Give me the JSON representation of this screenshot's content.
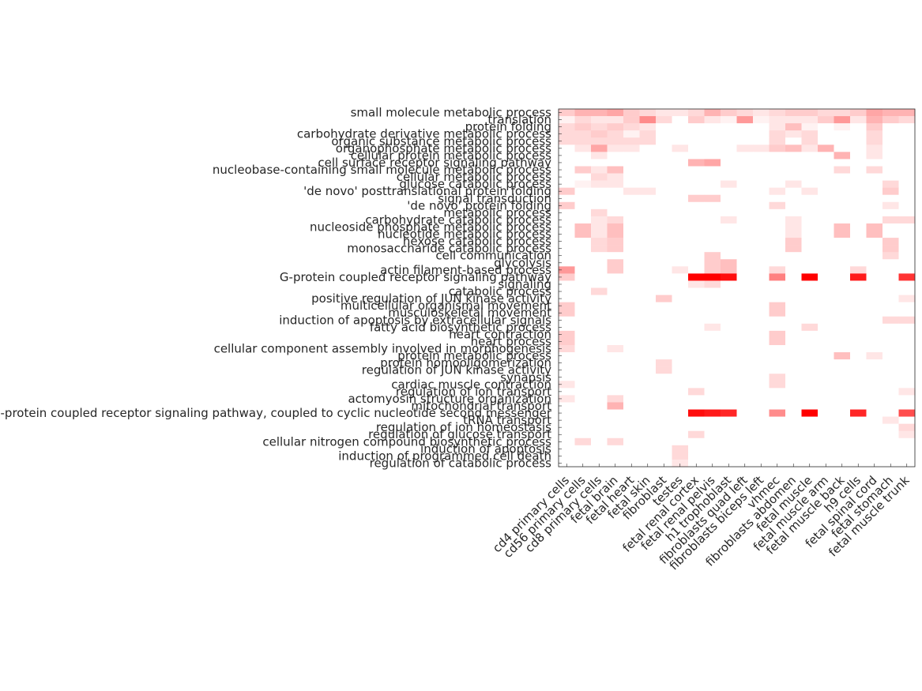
{
  "chart_data": {
    "type": "heatmap",
    "colormap": [
      "#ffffff",
      "#ff0000"
    ],
    "rows": [
      "small molecule metabolic process",
      "translation",
      "protein folding",
      "carbohydrate derivative metabolic process",
      "organic substance metabolic process",
      "organophosphate metabolic process",
      "cellular protein metabolic process",
      "cell surface receptor signaling pathway",
      "nucleobase-containing small molecule metabolic process",
      "cellular metabolic process",
      "glucose catabolic process",
      "'de novo' posttranslational protein folding",
      "signal transduction",
      "'de novo' protein folding",
      "metabolic process",
      "carbohydrate catabolic process",
      "nucleoside phosphate metabolic process",
      "nucleotide metabolic process",
      "hexose catabolic process",
      "monosaccharide catabolic process",
      "cell communication",
      "glycolysis",
      "actin filament-based process",
      "G-protein coupled receptor signaling pathway",
      "signaling",
      "catabolic process",
      "positive regulation of JUN kinase activity",
      "multicellular organismal movement",
      "musculoskeletal movement",
      "induction of apoptosis by extracellular signals",
      "fatty acid biosynthetic process",
      "heart contraction",
      "heart process",
      "cellular component assembly involved in morphogenesis",
      "protein metabolic process",
      "protein homooligomerization",
      "regulation of JUN kinase activity",
      "synapsis",
      "cardiac muscle contraction",
      "regulation of ion transport",
      "actomyosin structure organization",
      "mitochondrial transport",
      "G-protein coupled receptor signaling pathway, coupled to cyclic nucleotide second messenger",
      "tRNA transport",
      "regulation of ion homeostasis",
      "regulation of glucose transport",
      "cellular nitrogen compound biosynthetic process",
      "induction of apoptosis",
      "induction of programmed cell death",
      "regulation of catabolic process"
    ],
    "columns": [
      "cd4 primary cells",
      "cd56 primary cells",
      "cd8 primary cells",
      "fetal brain",
      "fetal heart",
      "fetal skin",
      "fibroblast",
      "testes",
      "fetal renal cortex",
      "fetal renal pelvis",
      "h1 trophoblast",
      "fibroblasts quad left",
      "fibroblasts biceps left",
      "vhmec",
      "fibroblasts abdomen",
      "fetal muscle",
      "fetal muscle arm",
      "fetal muscle back",
      "h9 cells",
      "fetal spinal cord",
      "fetal stomach",
      "fetal muscle trunk"
    ],
    "values": [
      [
        0.2,
        0.3,
        0.3,
        0.35,
        0.2,
        0.15,
        0.1,
        0.1,
        0.15,
        0.3,
        0.2,
        0.15,
        0.1,
        0.15,
        0.2,
        0.2,
        0.15,
        0.15,
        0.2,
        0.35,
        0.3,
        0.3
      ],
      [
        0.05,
        0.15,
        0.1,
        0.1,
        0.2,
        0.45,
        0.15,
        0,
        0.2,
        0.1,
        0.05,
        0.4,
        0.05,
        0.1,
        0.1,
        0.1,
        0.2,
        0.4,
        0.1,
        0.3,
        0.2,
        0.15
      ],
      [
        0.15,
        0.2,
        0.15,
        0.2,
        0.15,
        0.1,
        0,
        0,
        0,
        0,
        0,
        0,
        0,
        0.1,
        0.25,
        0.05,
        0,
        0.05,
        0,
        0.2,
        0,
        0
      ],
      [
        0.15,
        0.15,
        0.2,
        0.15,
        0.05,
        0.15,
        0,
        0,
        0,
        0,
        0,
        0,
        0,
        0.15,
        0.1,
        0.15,
        0,
        0,
        0,
        0.15,
        0,
        0
      ],
      [
        0.15,
        0.15,
        0.15,
        0.15,
        0.15,
        0.15,
        0,
        0,
        0,
        0,
        0,
        0,
        0,
        0.15,
        0,
        0.15,
        0,
        0,
        0,
        0.15,
        0,
        0
      ],
      [
        0,
        0.1,
        0.35,
        0.1,
        0.1,
        0,
        0,
        0.1,
        0,
        0,
        0,
        0.1,
        0.1,
        0.2,
        0.25,
        0.1,
        0.3,
        0,
        0,
        0.1,
        0,
        0
      ],
      [
        0,
        0,
        0.1,
        0,
        0,
        0,
        0,
        0,
        0,
        0,
        0,
        0,
        0,
        0,
        0,
        0,
        0,
        0.3,
        0,
        0.1,
        0,
        0
      ],
      [
        0,
        0,
        0,
        0,
        0,
        0,
        0,
        0,
        0.3,
        0.35,
        0,
        0,
        0,
        0,
        0,
        0,
        0,
        0,
        0,
        0,
        0,
        0
      ],
      [
        0,
        0.2,
        0.1,
        0.25,
        0,
        0,
        0,
        0,
        0,
        0,
        0,
        0,
        0,
        0,
        0,
        0,
        0,
        0.15,
        0,
        0.15,
        0,
        0
      ],
      [
        0,
        0,
        0.15,
        0.1,
        0,
        0,
        0,
        0,
        0,
        0,
        0,
        0,
        0,
        0,
        0,
        0,
        0,
        0,
        0,
        0,
        0,
        0
      ],
      [
        0,
        0.05,
        0.1,
        0.1,
        0,
        0,
        0,
        0,
        0,
        0,
        0.1,
        0,
        0,
        0,
        0.1,
        0,
        0,
        0,
        0,
        0,
        0.15,
        0
      ],
      [
        0.2,
        0,
        0,
        0,
        0.1,
        0.1,
        0,
        0,
        0,
        0,
        0,
        0,
        0,
        0.1,
        0,
        0.1,
        0,
        0,
        0,
        0,
        0.2,
        0
      ],
      [
        0,
        0,
        0,
        0,
        0,
        0,
        0,
        0,
        0.2,
        0.2,
        0,
        0,
        0,
        0,
        0,
        0,
        0,
        0,
        0,
        0,
        0,
        0
      ],
      [
        0.2,
        0,
        0,
        0,
        0,
        0,
        0,
        0,
        0,
        0,
        0,
        0,
        0,
        0.15,
        0,
        0,
        0,
        0,
        0,
        0,
        0.1,
        0
      ],
      [
        0,
        0,
        0.15,
        0,
        0,
        0,
        0,
        0,
        0,
        0,
        0,
        0,
        0,
        0,
        0,
        0,
        0,
        0,
        0,
        0,
        0,
        0
      ],
      [
        0,
        0,
        0.1,
        0.15,
        0,
        0,
        0,
        0,
        0,
        0,
        0.1,
        0,
        0,
        0,
        0.1,
        0,
        0,
        0,
        0,
        0,
        0.15,
        0.15
      ],
      [
        0,
        0.25,
        0.1,
        0.25,
        0,
        0,
        0,
        0,
        0,
        0,
        0,
        0,
        0,
        0,
        0.1,
        0,
        0,
        0.25,
        0,
        0.25,
        0,
        0
      ],
      [
        0,
        0.25,
        0.1,
        0.25,
        0,
        0,
        0,
        0,
        0,
        0,
        0,
        0,
        0,
        0,
        0.1,
        0,
        0,
        0.25,
        0,
        0.25,
        0,
        0
      ],
      [
        0,
        0,
        0.15,
        0.2,
        0,
        0,
        0,
        0,
        0,
        0,
        0,
        0,
        0,
        0,
        0.2,
        0,
        0,
        0,
        0,
        0,
        0.2,
        0
      ],
      [
        0,
        0,
        0.15,
        0.2,
        0,
        0,
        0,
        0,
        0,
        0,
        0,
        0,
        0,
        0,
        0.2,
        0,
        0,
        0,
        0,
        0,
        0.2,
        0
      ],
      [
        0,
        0,
        0,
        0,
        0,
        0,
        0,
        0,
        0,
        0.2,
        0,
        0,
        0,
        0,
        0,
        0,
        0,
        0,
        0,
        0,
        0.15,
        0
      ],
      [
        0,
        0,
        0,
        0.2,
        0,
        0,
        0,
        0,
        0,
        0.2,
        0.25,
        0,
        0,
        0,
        0,
        0,
        0,
        0,
        0,
        0,
        0,
        0
      ],
      [
        0.4,
        0,
        0,
        0.2,
        0,
        0,
        0,
        0.1,
        0,
        0.2,
        0.25,
        0,
        0,
        0.15,
        0,
        0,
        0,
        0,
        0.15,
        0,
        0,
        0
      ],
      [
        0.2,
        0,
        0,
        0,
        0,
        0,
        0,
        0,
        1,
        1,
        0.95,
        0,
        0,
        0.5,
        0,
        1,
        0,
        0,
        0.9,
        0,
        0,
        0.8
      ],
      [
        0,
        0,
        0,
        0,
        0,
        0,
        0,
        0,
        0.1,
        0.15,
        0,
        0,
        0,
        0,
        0,
        0,
        0,
        0,
        0,
        0,
        0,
        0
      ],
      [
        0,
        0,
        0.15,
        0,
        0,
        0,
        0,
        0,
        0,
        0,
        0,
        0,
        0,
        0,
        0,
        0,
        0,
        0,
        0,
        0,
        0,
        0
      ],
      [
        0,
        0,
        0,
        0,
        0,
        0,
        0.2,
        0,
        0,
        0,
        0,
        0,
        0,
        0,
        0,
        0,
        0,
        0,
        0,
        0,
        0,
        0.1
      ],
      [
        0.2,
        0,
        0,
        0,
        0,
        0,
        0,
        0,
        0,
        0,
        0,
        0,
        0,
        0.2,
        0,
        0,
        0,
        0,
        0,
        0,
        0,
        0
      ],
      [
        0.2,
        0,
        0,
        0,
        0,
        0,
        0,
        0,
        0,
        0,
        0,
        0,
        0,
        0.2,
        0,
        0,
        0,
        0,
        0,
        0,
        0,
        0
      ],
      [
        0,
        0,
        0,
        0,
        0,
        0,
        0,
        0,
        0,
        0,
        0,
        0,
        0,
        0,
        0,
        0,
        0,
        0,
        0,
        0,
        0.15,
        0.15
      ],
      [
        0,
        0,
        0,
        0,
        0,
        0,
        0,
        0,
        0,
        0.1,
        0,
        0,
        0,
        0,
        0,
        0.15,
        0,
        0,
        0,
        0,
        0,
        0
      ],
      [
        0.2,
        0,
        0,
        0,
        0,
        0,
        0,
        0,
        0,
        0,
        0,
        0,
        0,
        0.2,
        0,
        0,
        0,
        0,
        0,
        0,
        0,
        0
      ],
      [
        0.2,
        0,
        0,
        0,
        0,
        0,
        0,
        0,
        0,
        0,
        0,
        0,
        0,
        0.2,
        0,
        0,
        0,
        0,
        0,
        0,
        0,
        0
      ],
      [
        0.15,
        0,
        0,
        0.1,
        0,
        0,
        0,
        0,
        0,
        0,
        0,
        0,
        0,
        0,
        0,
        0,
        0,
        0,
        0,
        0,
        0,
        0
      ],
      [
        0,
        0,
        0,
        0,
        0,
        0,
        0,
        0,
        0,
        0,
        0,
        0,
        0,
        0,
        0,
        0,
        0,
        0.25,
        0,
        0.1,
        0,
        0
      ],
      [
        0,
        0,
        0,
        0,
        0,
        0,
        0.15,
        0,
        0,
        0,
        0,
        0,
        0,
        0,
        0,
        0,
        0,
        0,
        0,
        0,
        0,
        0
      ],
      [
        0,
        0,
        0,
        0,
        0,
        0,
        0.15,
        0,
        0,
        0,
        0,
        0,
        0,
        0,
        0,
        0,
        0,
        0,
        0,
        0,
        0,
        0
      ],
      [
        0,
        0,
        0,
        0,
        0,
        0,
        0,
        0,
        0,
        0,
        0,
        0,
        0,
        0.15,
        0,
        0,
        0,
        0,
        0,
        0,
        0,
        0
      ],
      [
        0.1,
        0,
        0,
        0,
        0,
        0,
        0,
        0,
        0,
        0,
        0,
        0,
        0,
        0.15,
        0,
        0,
        0,
        0,
        0,
        0,
        0,
        0
      ],
      [
        0,
        0,
        0,
        0,
        0,
        0,
        0,
        0,
        0.15,
        0,
        0,
        0,
        0,
        0,
        0,
        0,
        0,
        0,
        0,
        0,
        0,
        0.1
      ],
      [
        0.1,
        0,
        0,
        0.15,
        0,
        0,
        0,
        0,
        0,
        0,
        0,
        0,
        0,
        0,
        0,
        0,
        0,
        0,
        0,
        0,
        0,
        0
      ],
      [
        0,
        0,
        0,
        0.3,
        0,
        0,
        0,
        0,
        0,
        0,
        0,
        0,
        0,
        0,
        0,
        0,
        0,
        0,
        0,
        0,
        0,
        0
      ],
      [
        0,
        0,
        0,
        0,
        0,
        0,
        0,
        0,
        0.95,
        0.9,
        0.85,
        0,
        0,
        0.45,
        0,
        1,
        0,
        0,
        0.85,
        0,
        0,
        0.7
      ],
      [
        0,
        0,
        0,
        0,
        0,
        0,
        0,
        0,
        0,
        0,
        0,
        0,
        0,
        0,
        0,
        0,
        0,
        0,
        0,
        0,
        0.1,
        0
      ],
      [
        0,
        0,
        0,
        0,
        0,
        0,
        0,
        0,
        0,
        0,
        0,
        0,
        0,
        0,
        0,
        0,
        0,
        0,
        0,
        0,
        0,
        0.15
      ],
      [
        0,
        0,
        0,
        0,
        0,
        0,
        0,
        0,
        0.15,
        0,
        0,
        0,
        0,
        0,
        0,
        0,
        0,
        0,
        0,
        0,
        0,
        0.1
      ],
      [
        0,
        0.15,
        0,
        0.15,
        0,
        0,
        0,
        0,
        0,
        0,
        0,
        0,
        0,
        0,
        0,
        0,
        0,
        0,
        0,
        0,
        0,
        0
      ],
      [
        0,
        0,
        0,
        0,
        0,
        0,
        0,
        0.15,
        0,
        0,
        0,
        0,
        0,
        0,
        0,
        0,
        0,
        0,
        0,
        0,
        0,
        0
      ],
      [
        0,
        0,
        0,
        0,
        0,
        0,
        0,
        0.15,
        0,
        0,
        0,
        0,
        0,
        0,
        0,
        0,
        0,
        0,
        0,
        0,
        0,
        0
      ],
      [
        0,
        0,
        0,
        0,
        0,
        0,
        0,
        0.1,
        0,
        0,
        0,
        0,
        0,
        0,
        0,
        0,
        0,
        0,
        0,
        0,
        0,
        0
      ]
    ]
  }
}
